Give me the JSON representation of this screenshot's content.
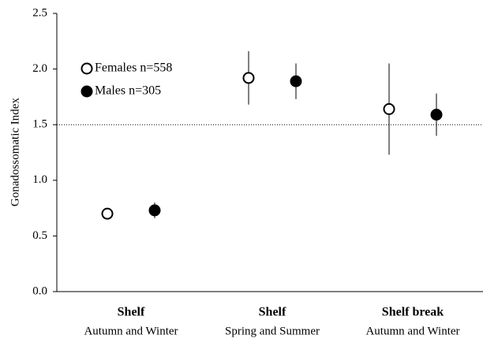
{
  "chart_data": {
    "type": "errorbar",
    "y_label": "Gonadossomatic Index",
    "categories": [
      "Shelf",
      "Shelf",
      "Shelf break"
    ],
    "category_subtitles": [
      "Autumn and Winter",
      "Spring and Summer",
      "Autumn and Winter"
    ],
    "series": [
      {
        "name": "Females n=558",
        "color": "#000000",
        "filled": false,
        "values": [
          0.7,
          1.92,
          1.64
        ],
        "errors": [
          0.05,
          0.24,
          0.41
        ]
      },
      {
        "name": "Males n=305",
        "color": "#000000",
        "filled": true,
        "values": [
          0.73,
          1.89,
          1.59
        ],
        "errors": [
          0.07,
          0.16,
          0.19
        ]
      }
    ],
    "reference_line": 1.5,
    "ylim": [
      0,
      2.5
    ],
    "yticks": [
      {
        "value": 0,
        "label": "0.0"
      },
      0.5,
      {
        "value": 1,
        "label": "1.0"
      },
      1.5,
      {
        "value": 2,
        "label": "2.0"
      },
      2.5
    ],
    "grid": false
  }
}
